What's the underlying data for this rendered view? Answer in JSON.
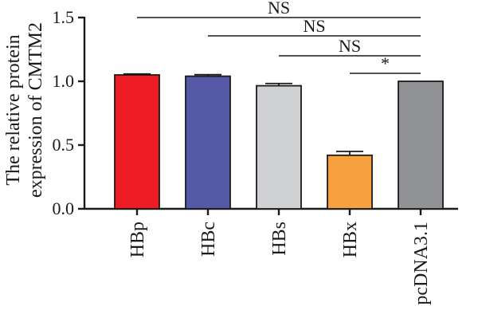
{
  "chart_data": {
    "type": "bar",
    "title": "",
    "xlabel": "",
    "ylabel_lines": [
      "The relative protein",
      "expression of CMTM2"
    ],
    "ylim": [
      0,
      1.5
    ],
    "yticks": [
      0.0,
      0.5,
      1.0,
      1.5
    ],
    "ytick_labels": [
      "0.0",
      "0.5",
      "1.0",
      "1.5"
    ],
    "grid": false,
    "categories": [
      "HBp",
      "HBc",
      "HBs",
      "HBx",
      "pcDNA3.1"
    ],
    "values": [
      1.05,
      1.04,
      0.965,
      0.42,
      1.0
    ],
    "errors": [
      0.008,
      0.012,
      0.018,
      0.03,
      0.0
    ],
    "colors": [
      "#ee1d23",
      "#5559a6",
      "#d0d1d2",
      "#f7a040",
      "#919295"
    ],
    "significance": [
      {
        "from": 0,
        "to": 4,
        "label": "NS"
      },
      {
        "from": 1,
        "to": 4,
        "label": "NS"
      },
      {
        "from": 2,
        "to": 4,
        "label": "NS"
      },
      {
        "from": 3,
        "to": 4,
        "label": "*"
      }
    ]
  }
}
